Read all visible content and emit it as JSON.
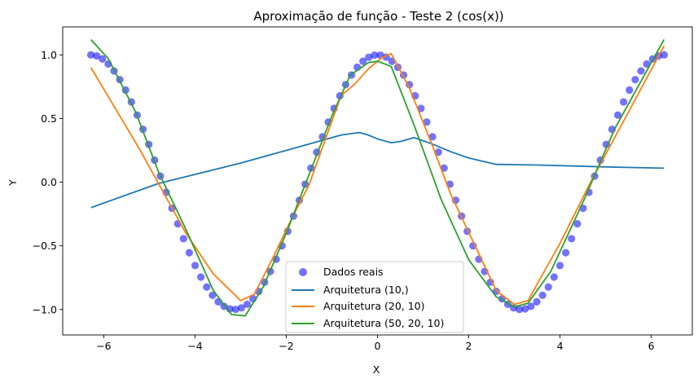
{
  "chart_data": {
    "type": "line",
    "title": "Aproximação de função - Teste 2 (cos(x))",
    "xlabel": "X",
    "ylabel": "Y",
    "xlim": [
      -6.9,
      6.9
    ],
    "ylim": [
      -1.2,
      1.22
    ],
    "x_ticks": [
      -6,
      -4,
      -2,
      0,
      2,
      4,
      6
    ],
    "x_tick_labels": [
      "−6",
      "−4",
      "−2",
      "0",
      "2",
      "4",
      "6"
    ],
    "y_ticks": [
      -1.0,
      -0.5,
      0.0,
      0.5,
      1.0
    ],
    "y_tick_labels": [
      "−1.0",
      "−0.5",
      "0.0",
      "0.5",
      "1.0"
    ],
    "grid": false,
    "legend_position": "lower-center",
    "scatter": {
      "name": "Dados reais",
      "color": "#0000ff",
      "x_start": -6.2832,
      "x_end": 6.2832,
      "count": 100,
      "y_function": "cos"
    },
    "series": [
      {
        "name": "Arquitetura (10,)",
        "color": "#1f77b4",
        "x": [
          -6.28,
          -4.8,
          -3.0,
          -1.5,
          -0.8,
          -0.4,
          -0.2,
          0.0,
          0.3,
          0.5,
          0.8,
          1.2,
          1.6,
          2.0,
          2.6,
          3.5,
          5.0,
          6.28
        ],
        "y": [
          -0.2,
          -0.01,
          0.15,
          0.3,
          0.37,
          0.39,
          0.37,
          0.34,
          0.31,
          0.32,
          0.35,
          0.3,
          0.24,
          0.19,
          0.14,
          0.135,
          0.12,
          0.11
        ]
      },
      {
        "name": "Arquitetura (20, 10)",
        "color": "#ff7f0e",
        "x": [
          -6.28,
          -5.2,
          -4.2,
          -3.6,
          -3.0,
          -2.7,
          -2.3,
          -1.9,
          -1.5,
          -1.1,
          -0.8,
          -0.5,
          -0.2,
          0.1,
          0.3,
          0.7,
          1.2,
          1.6,
          2.1,
          2.6,
          3.0,
          3.3,
          4.0,
          4.7,
          5.5,
          6.28
        ],
        "y": [
          0.9,
          0.25,
          -0.4,
          -0.72,
          -0.93,
          -0.88,
          -0.6,
          -0.3,
          -0.02,
          0.38,
          0.68,
          0.77,
          0.89,
          0.98,
          1.01,
          0.74,
          0.29,
          -0.09,
          -0.47,
          -0.85,
          -0.96,
          -0.93,
          -0.48,
          0.02,
          0.55,
          1.07
        ]
      },
      {
        "name": "Arquitetura (50, 20, 10)",
        "color": "#2ca02c",
        "x": [
          -6.28,
          -5.9,
          -5.3,
          -4.8,
          -4.2,
          -3.6,
          -3.2,
          -2.9,
          -2.5,
          -2.0,
          -1.5,
          -1.0,
          -0.6,
          -0.2,
          0.0,
          0.3,
          0.8,
          1.4,
          2.0,
          2.6,
          3.0,
          3.3,
          3.8,
          4.5,
          5.2,
          6.28
        ],
        "y": [
          1.12,
          0.97,
          0.55,
          0.08,
          -0.37,
          -0.85,
          -1.04,
          -1.05,
          -0.82,
          -0.4,
          0.06,
          0.52,
          0.84,
          0.94,
          0.95,
          0.91,
          0.45,
          -0.14,
          -0.61,
          -0.9,
          -0.98,
          -0.95,
          -0.7,
          -0.16,
          0.42,
          1.12
        ]
      }
    ]
  }
}
